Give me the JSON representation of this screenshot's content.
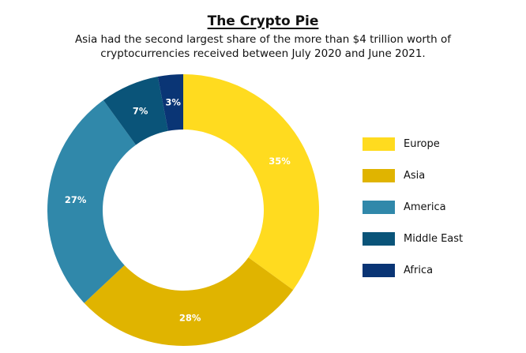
{
  "chart_data": {
    "type": "pie",
    "title": "The Crypto Pie",
    "subtitle": "Asia had the second largest share of the more than $4 trillion worth of cryptocurrencies received between July 2020 and June 2021.",
    "categories": [
      "Europe",
      "Asia",
      "America",
      "Middle East",
      "Africa"
    ],
    "values": [
      35,
      28,
      27,
      7,
      3
    ],
    "data_labels": [
      "35%",
      "28%",
      "27%",
      "7%",
      "3%"
    ],
    "colors": [
      "#ffdb1f",
      "#e0b400",
      "#3088aa",
      "#0a5479",
      "#0a3575"
    ],
    "donut": true,
    "legend_position": "right"
  }
}
